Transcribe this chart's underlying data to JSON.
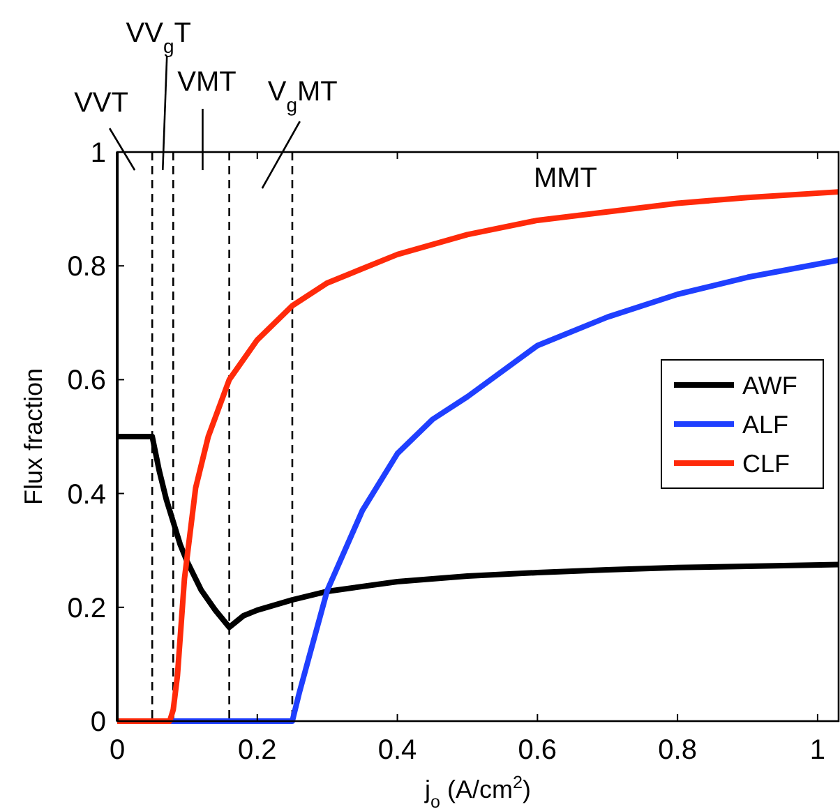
{
  "chart_data": {
    "type": "line",
    "xlabel": "j$_{o}$ (A/cm$^{2}$)",
    "ylabel": "Flux fraction",
    "xlim": [
      0,
      1.03
    ],
    "ylim": [
      0,
      1
    ],
    "xticks": [
      0,
      0.2,
      0.4,
      0.6,
      0.8,
      1
    ],
    "yticks": [
      0,
      0.2,
      0.4,
      0.6,
      0.8,
      1
    ],
    "grid": false,
    "legend": "right",
    "line_style": "solid",
    "marker": "none",
    "series": [
      {
        "name": "AWF",
        "color": "#000000",
        "x": [
          0,
          0.05,
          0.055,
          0.06,
          0.07,
          0.08,
          0.09,
          0.1,
          0.12,
          0.14,
          0.16,
          0.18,
          0.2,
          0.25,
          0.3,
          0.4,
          0.5,
          0.6,
          0.7,
          0.8,
          0.9,
          1.03
        ],
        "values": [
          0.5,
          0.5,
          0.47,
          0.44,
          0.39,
          0.35,
          0.31,
          0.28,
          0.23,
          0.195,
          0.165,
          0.185,
          0.195,
          0.213,
          0.228,
          0.245,
          0.255,
          0.261,
          0.266,
          0.27,
          0.272,
          0.275
        ]
      },
      {
        "name": "ALF",
        "color": "#1f3fff",
        "x": [
          0,
          0.25,
          0.26,
          0.28,
          0.3,
          0.35,
          0.4,
          0.45,
          0.5,
          0.6,
          0.7,
          0.8,
          0.9,
          1.03
        ],
        "values": [
          0,
          0,
          0.05,
          0.14,
          0.23,
          0.37,
          0.47,
          0.53,
          0.57,
          0.66,
          0.71,
          0.75,
          0.78,
          0.81
        ]
      },
      {
        "name": "CLF",
        "color": "#ff2a0a",
        "x": [
          0,
          0.075,
          0.08,
          0.086,
          0.096,
          0.112,
          0.13,
          0.16,
          0.2,
          0.25,
          0.3,
          0.4,
          0.5,
          0.6,
          0.7,
          0.8,
          0.9,
          1.03
        ],
        "values": [
          0,
          0,
          0.02,
          0.08,
          0.25,
          0.41,
          0.5,
          0.6,
          0.67,
          0.73,
          0.77,
          0.82,
          0.855,
          0.88,
          0.895,
          0.91,
          0.92,
          0.93
        ]
      }
    ],
    "ref_lines": [
      {
        "axis": "x",
        "value": 0.05,
        "line_style": "dashed",
        "color": "#000000"
      },
      {
        "axis": "x",
        "value": 0.08,
        "line_style": "dashed",
        "color": "#000000"
      },
      {
        "axis": "x",
        "value": 0.16,
        "line_style": "dashed",
        "color": "#000000"
      },
      {
        "axis": "x",
        "value": 0.25,
        "line_style": "dashed",
        "color": "#000000"
      }
    ],
    "annotations": [
      "VVT",
      "VV$_{g}$T",
      "VMT",
      "V$_{g}$MT",
      "MMT"
    ]
  }
}
